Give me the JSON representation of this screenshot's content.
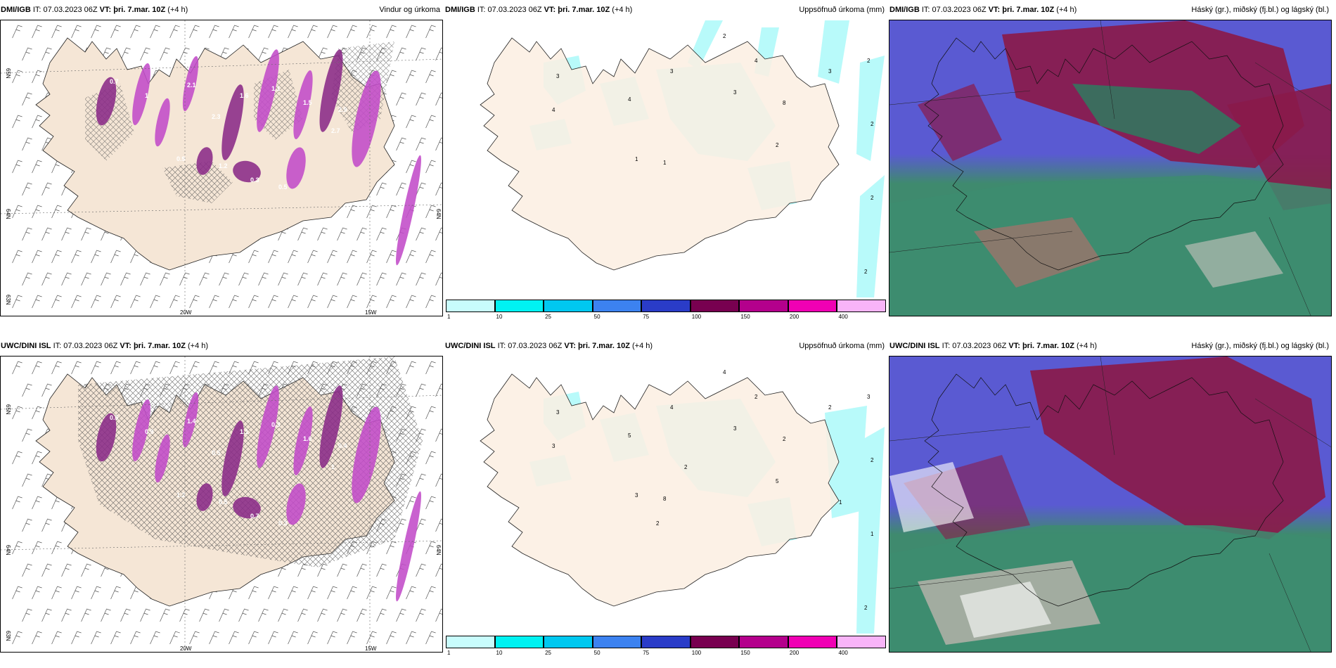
{
  "rows": [
    {
      "model": "DMI/IGB",
      "it_label": "IT:",
      "it_value": "07.03.2023 06Z",
      "vt_label": "VT:",
      "vt_value": "þri. 7.mar. 10Z",
      "lead": "(+4 h)",
      "titles": [
        "Vindur og úrkoma",
        "Uppsöfnuð úrkoma (mm)",
        "Háský (gr.), miðský (fj.bl.) og lágský (bl.)"
      ],
      "axis_labels": {
        "lon_20": "20W",
        "lon_15": "15W",
        "lat_65": "65N",
        "lat_64": "64N",
        "lat_63": "63N"
      },
      "precip_values": [
        "0.7",
        "1",
        "2.1",
        "2.3",
        "1.6",
        "1.1",
        "1.5",
        "2.9",
        "2.7",
        "0.3",
        "0.5",
        "0.9",
        "1.2"
      ],
      "accum_values": [
        "3",
        "4",
        "3",
        "4",
        "3",
        "4",
        "8",
        "2",
        "2",
        "1",
        "1",
        "3",
        "2",
        "2",
        "2",
        "2"
      ]
    },
    {
      "model": "UWC/DINI ISL",
      "it_label": "IT:",
      "it_value": "07.03.2023 06Z",
      "vt_label": "VT:",
      "vt_value": "þri. 7.mar. 10Z",
      "lead": "(+4 h)",
      "titles": [
        "",
        "Uppsöfnuð úrkoma (mm)",
        "Háský (gr.), miðský (fj.bl.) og lágský (bl.)"
      ],
      "axis_labels": {
        "lon_20": "20W",
        "lon_15": "15W",
        "lat_65": "65N",
        "lat_64": "64N",
        "lat_63": "63N"
      },
      "precip_values": [
        "0.5",
        "0.9",
        "1.4",
        "0.5",
        "1.1",
        "0.3",
        "1.6",
        "0.4",
        "1",
        "0.7",
        "0.3",
        "1.2",
        "0.5"
      ],
      "accum_values": [
        "3",
        "3",
        "4",
        "5",
        "3",
        "2",
        "2",
        "4",
        "5",
        "3",
        "8",
        "2",
        "3",
        "2",
        "1",
        "2",
        "1",
        "2",
        "2"
      ]
    }
  ],
  "colorbar": {
    "ticks": [
      "1",
      "10",
      "25",
      "50",
      "75",
      "100",
      "150",
      "200",
      "400"
    ],
    "colors": [
      "#c8fcfc",
      "#00f2f2",
      "#00c8f0",
      "#3c82f0",
      "#2a3cc8",
      "#780050",
      "#b4008c",
      "#f000b4",
      "#f8b4f8"
    ]
  },
  "colors": {
    "land": "#f7e9dc",
    "precip": "#c24bc8",
    "accum": "#b8fafa",
    "cloud_high": "#8a1a4a",
    "cloud_mid": "#3a7a62",
    "cloud_low": "#5050c8"
  }
}
